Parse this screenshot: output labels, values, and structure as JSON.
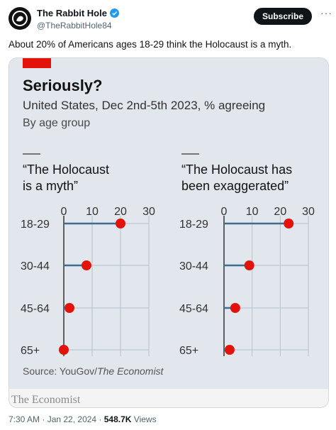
{
  "tweet": {
    "author_name": "The Rabbit Hole",
    "author_handle": "@TheRabbitHole84",
    "subscribe_label": "Subscribe",
    "more_label": "···",
    "text": "About 20% of Americans ages 18-29 think the Holocaust is a myth.",
    "time": "7:30 AM · Jan 22, 2024 · ",
    "views_count": "548.7K",
    "views_label": " Views"
  },
  "chart_data": {
    "type": "scatter",
    "title": "Seriously?",
    "subtitle": "United States, Dec 2nd-5th 2023, % agreeing",
    "subtitle2": "By age group",
    "source_prefix": "Source: YouGov/",
    "source_italic": "The Economist",
    "brand": "The Economist",
    "xlim": [
      0,
      30
    ],
    "ticks": [
      "0",
      "10",
      "20",
      "30"
    ],
    "categories": [
      "18-29",
      "30-44",
      "45-64",
      "65+"
    ],
    "panels": [
      {
        "title_line1": "“The Holocaust",
        "title_line2": "is a myth”",
        "values": [
          20,
          8,
          2,
          0
        ]
      },
      {
        "title_line1": "“The Holocaust has",
        "title_line2": "been exaggerated”",
        "values": [
          23,
          9,
          4,
          2
        ]
      }
    ],
    "colors": {
      "dot": "#e3120b",
      "stem": "#3f6d8e",
      "grid": "#b4c2cc",
      "background": "#e1e7ed",
      "accent": "#e3120b"
    }
  }
}
